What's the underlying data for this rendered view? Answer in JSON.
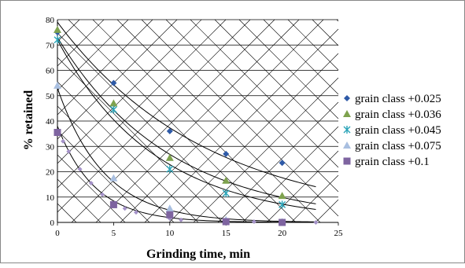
{
  "chart_data": {
    "type": "scatter",
    "title": "",
    "xlabel": "Grinding time, min",
    "ylabel": "% retained",
    "xlim": [
      0,
      25
    ],
    "ylim": [
      0,
      80
    ],
    "xticks": [
      0,
      5,
      10,
      15,
      20,
      25
    ],
    "yticks": [
      0,
      10,
      20,
      30,
      40,
      50,
      60,
      70,
      80
    ],
    "grid": true,
    "legend_position": "right",
    "series": [
      {
        "name": "grain class +0.025",
        "marker": "diamond",
        "color": "#2e5aa7",
        "x": [
          0,
          5,
          10,
          15,
          20
        ],
        "y": [
          75,
          55,
          36,
          27,
          23.5
        ]
      },
      {
        "name": "grain class +0.036",
        "marker": "triangle",
        "color": "#7ea24e",
        "x": [
          0,
          5,
          10,
          15,
          20
        ],
        "y": [
          76,
          47,
          25.5,
          16.5,
          10.5
        ]
      },
      {
        "name": "grain class +0.045",
        "marker": "star",
        "color": "#2aa4b8",
        "x": [
          0,
          5,
          10,
          15,
          20
        ],
        "y": [
          72,
          44.5,
          21,
          11.5,
          7
        ]
      },
      {
        "name": "grain class +0.075",
        "marker": "triangle",
        "color": "#a9bfe0",
        "x": [
          0,
          5,
          10,
          15,
          20
        ],
        "y": [
          54,
          17.5,
          5.5,
          1,
          0.2
        ]
      },
      {
        "name": "grain class +0.1",
        "marker": "square",
        "color": "#7e64a0",
        "x": [
          0,
          5,
          10,
          15,
          20
        ],
        "y": [
          35.5,
          7,
          3,
          0.3,
          0
        ]
      }
    ],
    "extra_points": {
      "color": "#a492c8",
      "x": [
        0.5,
        1,
        2,
        3,
        4,
        5,
        6,
        7,
        10,
        11,
        15,
        17.5,
        20,
        23
      ],
      "y": [
        32,
        28,
        21,
        15.5,
        11,
        7.5,
        5.5,
        4,
        1.5,
        1,
        0.5,
        0.3,
        0.1,
        0
      ]
    },
    "trendlines": [
      {
        "a": 79,
        "b": 0.075,
        "x_max": 23
      },
      {
        "a": 73,
        "b": 0.1,
        "x_max": 23
      },
      {
        "a": 72,
        "b": 0.115,
        "x_max": 23
      },
      {
        "a": 53,
        "b": 0.24,
        "x_max": 23
      },
      {
        "a": 38,
        "b": 0.3,
        "x_max": 23
      }
    ],
    "colors": {
      "gridline": "#000000",
      "trendline": "#000000"
    }
  }
}
